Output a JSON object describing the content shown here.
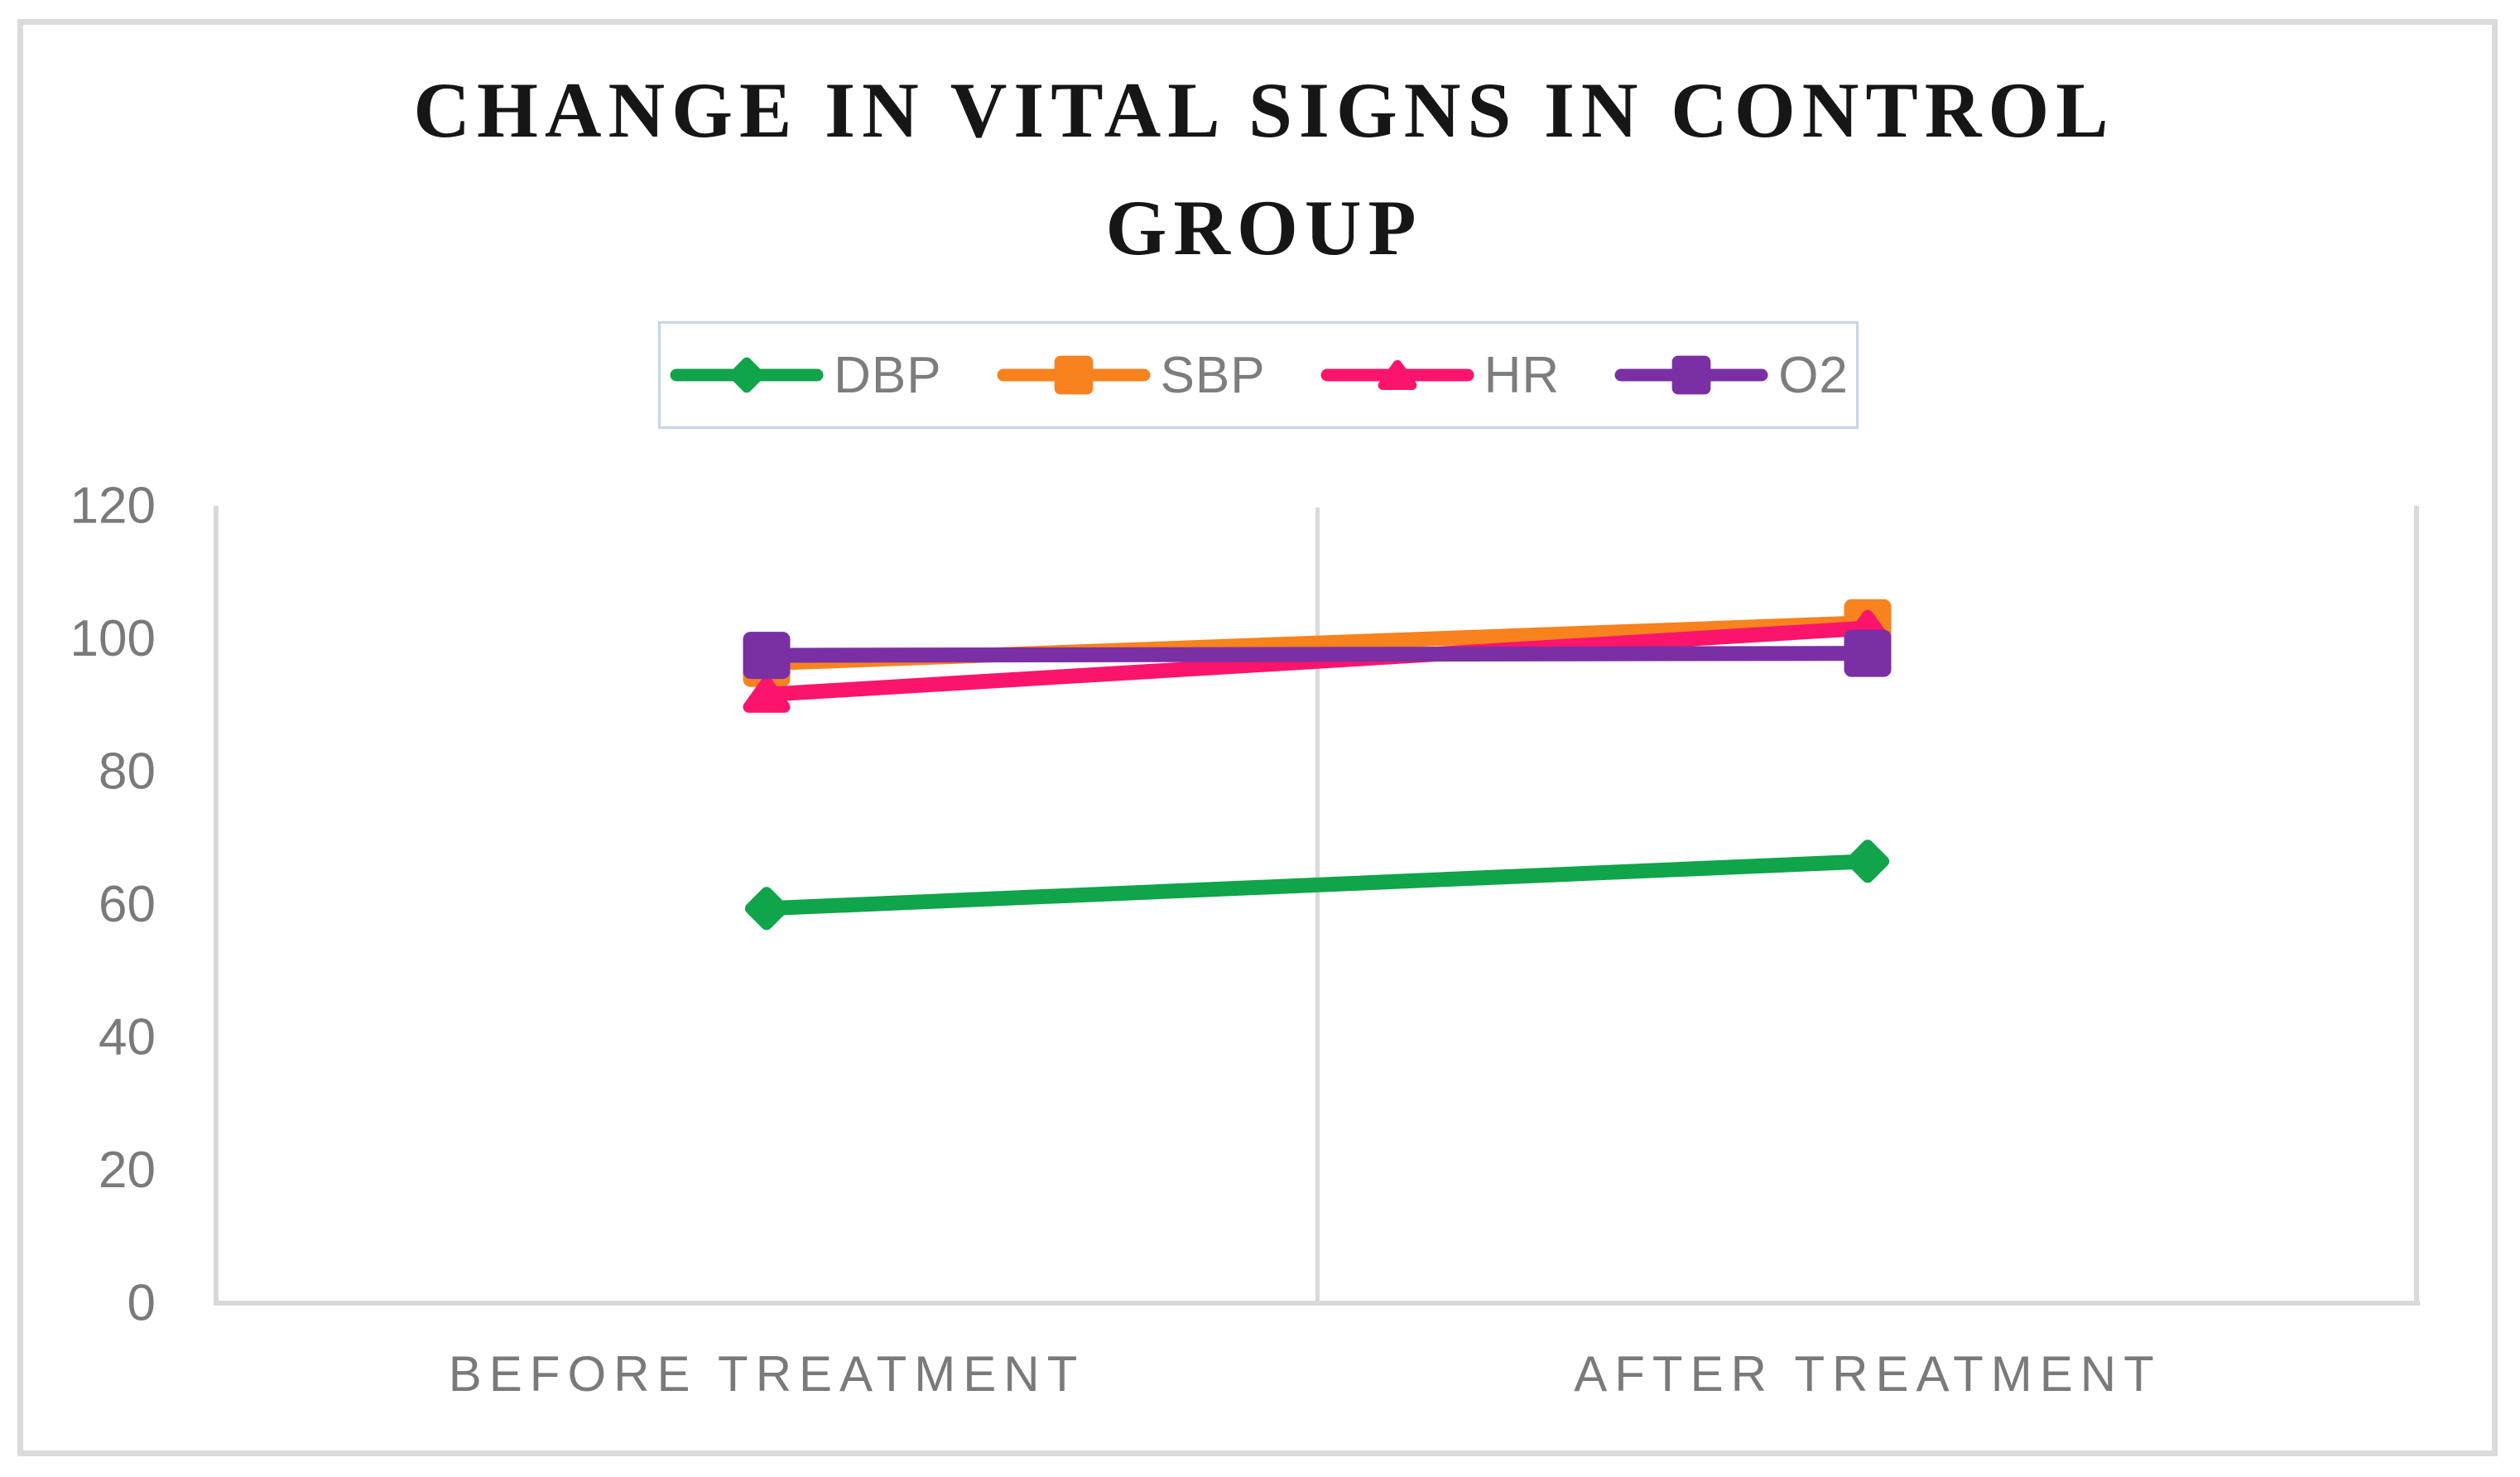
{
  "chart_data": {
    "type": "line",
    "title": "CHANGE IN VITAL SIGNS IN CONTROL GROUP",
    "categories": [
      "BEFORE TREATMENT",
      "AFTER TREATMENT"
    ],
    "series": [
      {
        "name": "DBP",
        "marker": "diamond",
        "color": "#10A44B",
        "values": [
          59.4,
          66.5
        ]
      },
      {
        "name": "SBP",
        "marker": "square",
        "color": "#F8821E",
        "values": [
          96.3,
          102.4
        ]
      },
      {
        "name": "HR",
        "marker": "triangle",
        "color": "#FB146C",
        "values": [
          91.6,
          101.6
        ]
      },
      {
        "name": "O2",
        "marker": "square",
        "color": "#7B2FA5",
        "values": [
          97.5,
          97.8
        ]
      }
    ],
    "ylim": [
      0,
      120
    ],
    "yticks": [
      0,
      20,
      40,
      60,
      80,
      100,
      120
    ],
    "xlabel": "",
    "ylabel": "",
    "legend_position": "top-center",
    "grid": {
      "horizontal_gridlines": false,
      "vertical_category_separator": true
    },
    "colors": {
      "axis_line": "#D9D9D9",
      "tick_label": "#7A7A7A",
      "category_label": "#7A7A7A",
      "legend_text": "#7D7D7D",
      "legend_border": "#C4D6E8",
      "title": "#161616",
      "figure_border": "#DBDBDB",
      "background": "#FFFFFF"
    }
  }
}
